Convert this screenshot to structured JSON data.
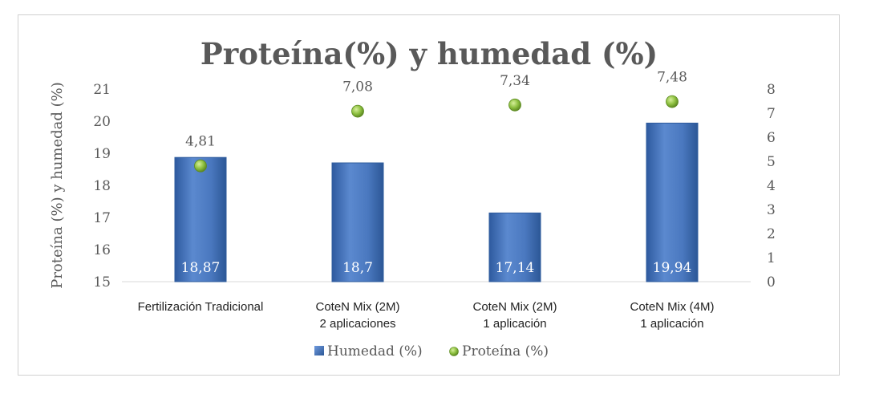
{
  "chart_data": {
    "type": "bar",
    "title": "Proteína(%) y humedad (%)",
    "ylabel": "Proteína (%) y humedad (%)",
    "xlabel": "",
    "categories": [
      [
        "Fertilización Tradicional"
      ],
      [
        "CoteN Mix (2M)",
        "2 aplicaciones"
      ],
      [
        "CoteN Mix (2M)",
        "1 aplicación"
      ],
      [
        "CoteN Mix (4M)",
        "1 aplicación"
      ]
    ],
    "series": [
      {
        "name": "Humedad (%)",
        "kind": "bar",
        "axis": "left",
        "values": [
          18.87,
          18.7,
          17.14,
          19.94
        ],
        "labels": [
          "18,87",
          "18,7",
          "17,14",
          "19,94"
        ],
        "color": "#4a78bf"
      },
      {
        "name": "Proteína (%)",
        "kind": "scatter",
        "axis": "right",
        "values": [
          4.81,
          7.08,
          7.34,
          7.48
        ],
        "labels": [
          "4,81",
          "7,08",
          "7,34",
          "7,48"
        ],
        "color": "#8cbf3f"
      }
    ],
    "ylim": [
      15,
      21
    ],
    "y_ticks": [
      "15",
      "16",
      "17",
      "18",
      "19",
      "20",
      "21"
    ],
    "y2lim": [
      0,
      8
    ],
    "y2_ticks": [
      "0",
      "1",
      "2",
      "3",
      "4",
      "5",
      "6",
      "7",
      "8"
    ],
    "grid": false,
    "legend": "bottom-center"
  }
}
